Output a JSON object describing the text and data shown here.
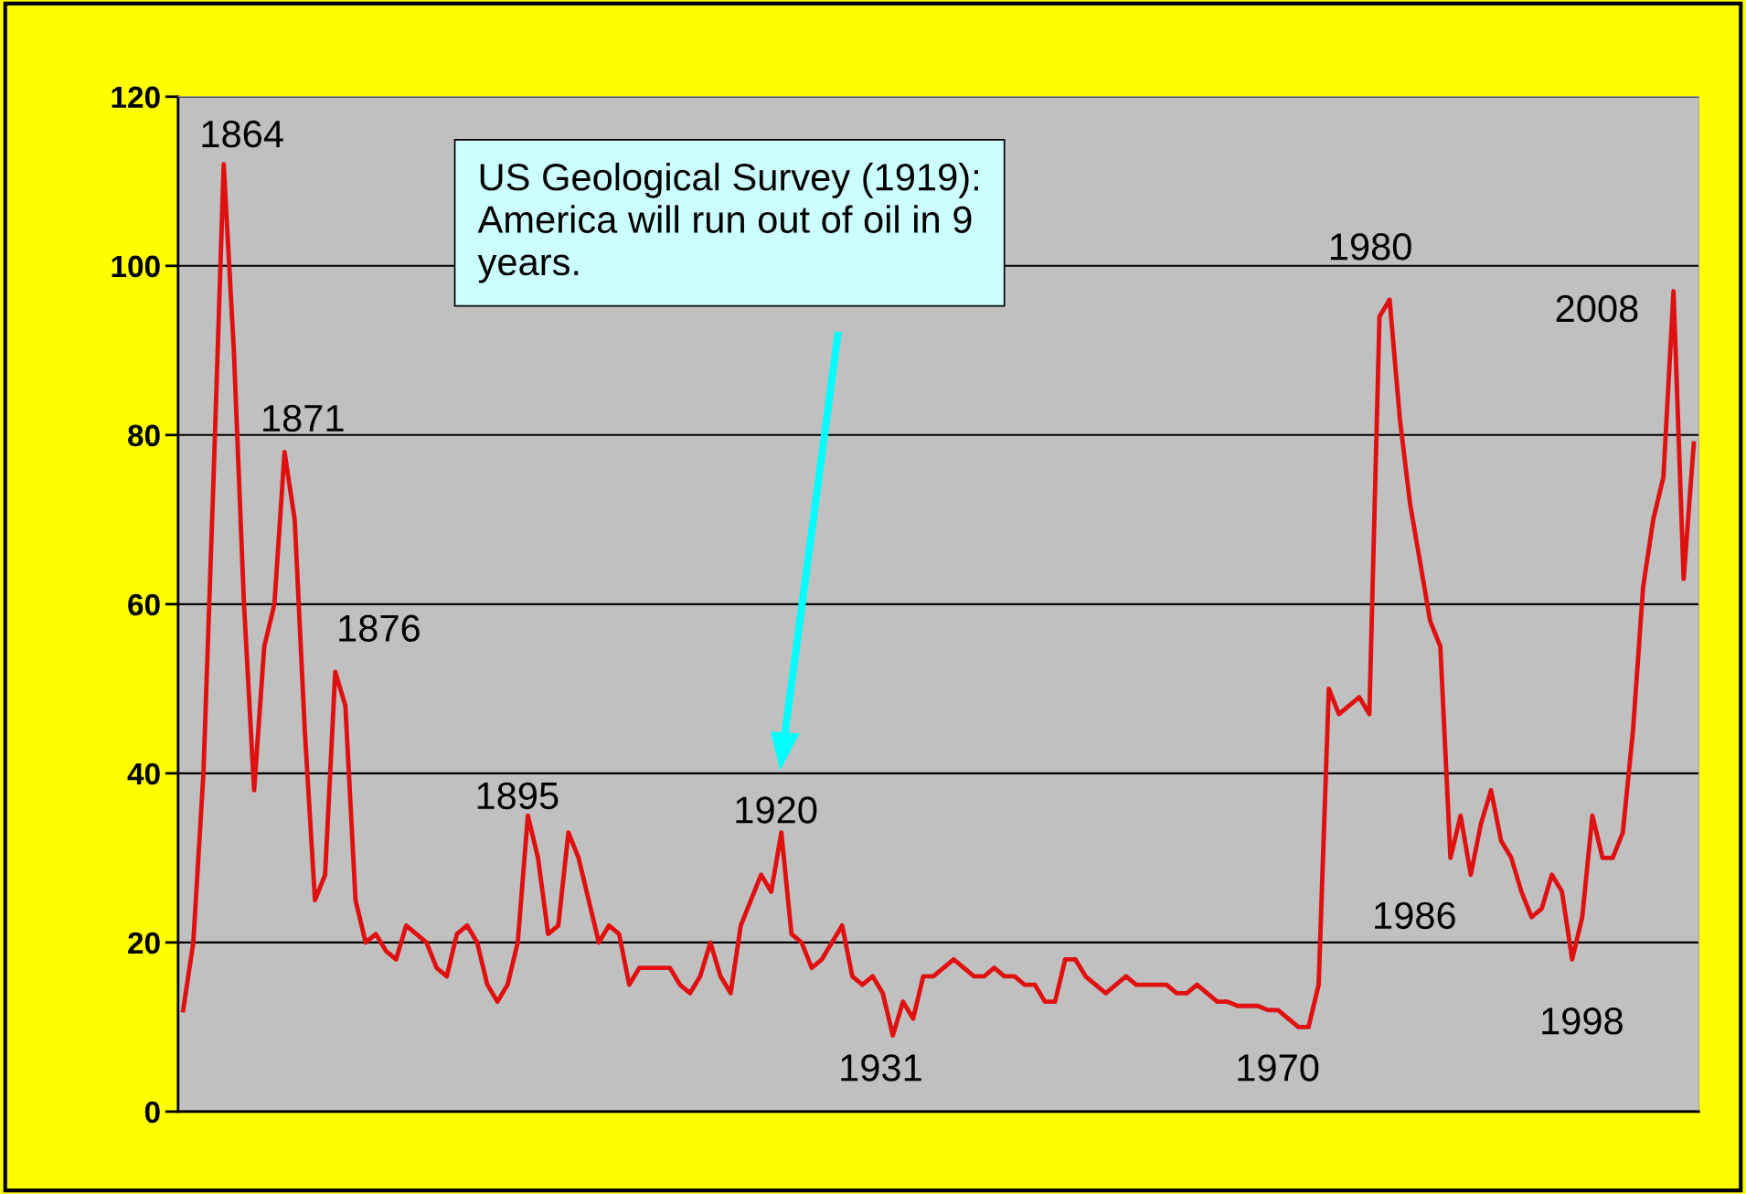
{
  "chart_data": {
    "type": "line",
    "categories": [
      null,
      null,
      null,
      null,
      null,
      null,
      null,
      null,
      null,
      null,
      null,
      null,
      null,
      null,
      null,
      null,
      null,
      null,
      null,
      null,
      null,
      null,
      null,
      null,
      null,
      null,
      null,
      null,
      null,
      null,
      null,
      null,
      null,
      null,
      null,
      null,
      null,
      null,
      null,
      null,
      null,
      null,
      null,
      null,
      null,
      null,
      null,
      null,
      null,
      null,
      null,
      null,
      null,
      null,
      null,
      null,
      null,
      null,
      null,
      null,
      null,
      null,
      null,
      null,
      null,
      null,
      null,
      null,
      null,
      null,
      null,
      null,
      null,
      null,
      null,
      null,
      null,
      null,
      null,
      null,
      null,
      null,
      null,
      null,
      null,
      null,
      null,
      null,
      null,
      null,
      null,
      null,
      null,
      null,
      null,
      null,
      null,
      null,
      null,
      null,
      null,
      null,
      null,
      null,
      null,
      null,
      null,
      null,
      null,
      null,
      null,
      null,
      null,
      null,
      null,
      null,
      null,
      null,
      null,
      null,
      null,
      null,
      null,
      null,
      null,
      null,
      null,
      null,
      null,
      null,
      null,
      null,
      null,
      null,
      null,
      null,
      null,
      null,
      null,
      null,
      null,
      null,
      null,
      null,
      null,
      null,
      null,
      null,
      null,
      null
    ],
    "series": [
      {
        "color": "#e01010",
        "values": [
          12,
          20,
          40,
          75,
          112,
          90,
          60,
          38,
          55,
          60,
          78,
          70,
          45,
          25,
          28,
          52,
          48,
          25,
          20,
          21,
          19,
          18,
          22,
          21,
          20,
          17,
          16,
          21,
          22,
          20,
          15,
          13,
          15,
          20,
          35,
          30,
          21,
          22,
          33,
          30,
          25,
          20,
          22,
          21,
          15,
          17,
          17,
          17,
          17,
          15,
          14,
          16,
          20,
          16,
          14,
          22,
          25,
          28,
          26,
          33,
          21,
          20,
          17,
          18,
          20,
          22,
          16,
          15,
          16,
          14,
          9,
          13,
          11,
          16,
          16,
          17,
          18,
          17,
          16,
          16,
          17,
          16,
          16,
          15,
          15,
          13,
          13,
          18,
          18,
          16,
          15,
          14,
          15,
          16,
          15,
          15,
          15,
          15,
          14,
          14,
          15,
          14,
          13,
          13,
          12.5,
          12.5,
          12.5,
          12,
          12,
          11,
          10,
          10,
          15,
          50,
          47,
          48,
          49,
          47,
          94,
          96,
          82,
          72,
          65,
          58,
          55,
          30,
          35,
          28,
          34,
          38,
          32,
          30,
          26,
          23,
          24,
          28,
          26,
          18,
          23,
          35,
          30,
          30,
          33,
          45,
          62,
          70,
          75,
          97,
          63,
          79
        ]
      }
    ],
    "ylim": [
      0,
      120
    ],
    "yticks": [
      0,
      20,
      40,
      60,
      80,
      100,
      120
    ],
    "grid": "y",
    "tick_labels": "y",
    "legend": false,
    "annotations": [
      "1864",
      "1871",
      "1876",
      "1895",
      "1920",
      "1931",
      "1970",
      "1980",
      "1986",
      "1998",
      "2008",
      "US Geological Survey (1919):\nAmerica will run out of oil in 9\nyears."
    ]
  }
}
